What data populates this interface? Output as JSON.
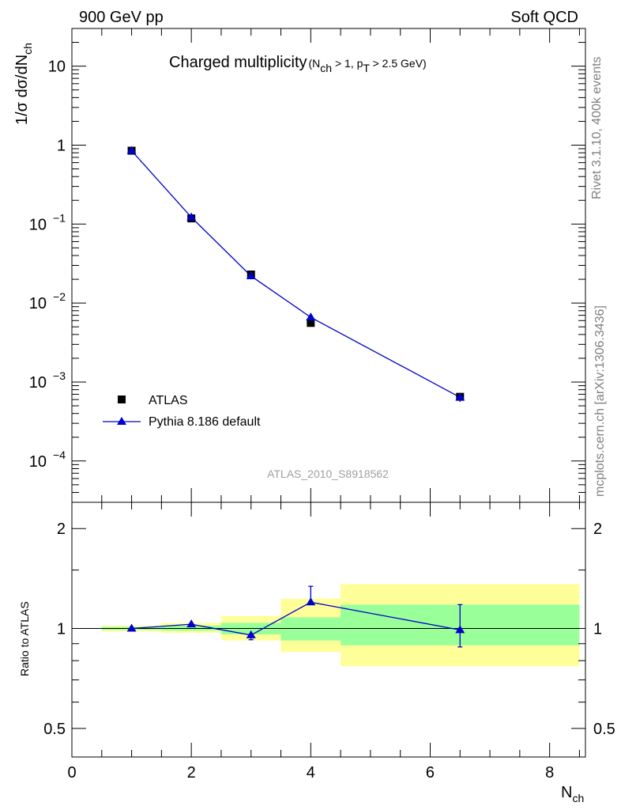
{
  "header": {
    "left": "900 GeV pp",
    "right": "Soft QCD"
  },
  "side_labels": {
    "rivet": "Rivet 3.1.10,  400k events",
    "mcplots": "mcplots.cern.ch [arXiv:1306.3436]"
  },
  "analysis_tag": "ATLAS_2010_S8918562",
  "colors": {
    "mc": "#0000cc",
    "data": "#000000",
    "band_outer": "#ffff99",
    "band_inner": "#99ff99"
  },
  "chart_data": [
    {
      "type": "scatter",
      "title": "Charged multiplicity",
      "title_sub": {
        "open": "(N",
        "ch": "ch",
        "mid": " > 1, p",
        "t": "T",
        "close": " > 2.5 GeV)"
      },
      "ylabel": {
        "prefix": "1/σ dσ/dN",
        "sub": "ch"
      },
      "xlim": [
        0,
        8.6
      ],
      "ylim": [
        3e-05,
        30
      ],
      "yscale": "log",
      "ytick_labels": [
        {
          "base": "10",
          "exp": "−4"
        },
        {
          "base": "10",
          "exp": "−3"
        },
        {
          "base": "10",
          "exp": "−2"
        },
        {
          "base": "10",
          "exp": "−1"
        },
        {
          "base": "1",
          "exp": ""
        },
        {
          "base": "10",
          "exp": ""
        }
      ],
      "legend_position": "bottom-left",
      "series": [
        {
          "name": "ATLAS",
          "marker": "square",
          "x": [
            1,
            2,
            3,
            4,
            6.5
          ],
          "xerr": [
            0.5,
            0.5,
            0.5,
            0.5,
            2
          ],
          "y": [
            0.85,
            0.118,
            0.023,
            0.0056,
            0.00065
          ]
        },
        {
          "name": "Pythia 8.186 default",
          "marker": "triangle",
          "x": [
            1,
            2,
            3,
            4,
            6.5
          ],
          "y": [
            0.85,
            0.122,
            0.022,
            0.0066,
            0.00064
          ],
          "yerr_low": [
            0.0,
            0.0,
            0.0,
            0.0,
            8e-05
          ],
          "yerr_high": [
            0.0,
            0.0,
            0.0,
            0.0,
            6e-05
          ]
        }
      ]
    },
    {
      "type": "scatter",
      "title": "Ratio to ATLAS",
      "ylabel": "Ratio to ATLAS",
      "xlabel": {
        "prefix": "N",
        "sub": "ch"
      },
      "xlim": [
        0,
        8.6
      ],
      "ylim": [
        0.41,
        2.4
      ],
      "yscale": "log",
      "xtick_labels": [
        "0",
        "2",
        "4",
        "6",
        "8"
      ],
      "ytick_labels": [
        "0.5",
        "1",
        "2"
      ],
      "bands": {
        "bin_edges": [
          0.5,
          1.5,
          2.5,
          3.5,
          4.5,
          8.5
        ],
        "outer_low": [
          0.98,
          0.97,
          0.92,
          0.85,
          0.77
        ],
        "outer_high": [
          1.02,
          1.04,
          1.09,
          1.23,
          1.36
        ],
        "inner_low": [
          0.99,
          0.985,
          0.96,
          0.92,
          0.89
        ],
        "inner_high": [
          1.01,
          1.02,
          1.04,
          1.08,
          1.18
        ]
      },
      "series": [
        {
          "name": "Pythia 8.186 default",
          "x": [
            1,
            2,
            3,
            4,
            6.5
          ],
          "y": [
            1.0,
            1.03,
            0.955,
            1.2,
            0.99
          ],
          "yerr_low": [
            0.0,
            0.0,
            0.03,
            0.0,
            0.11
          ],
          "yerr_high": [
            0.0,
            0.0,
            0.0,
            0.14,
            0.19
          ]
        }
      ]
    }
  ]
}
